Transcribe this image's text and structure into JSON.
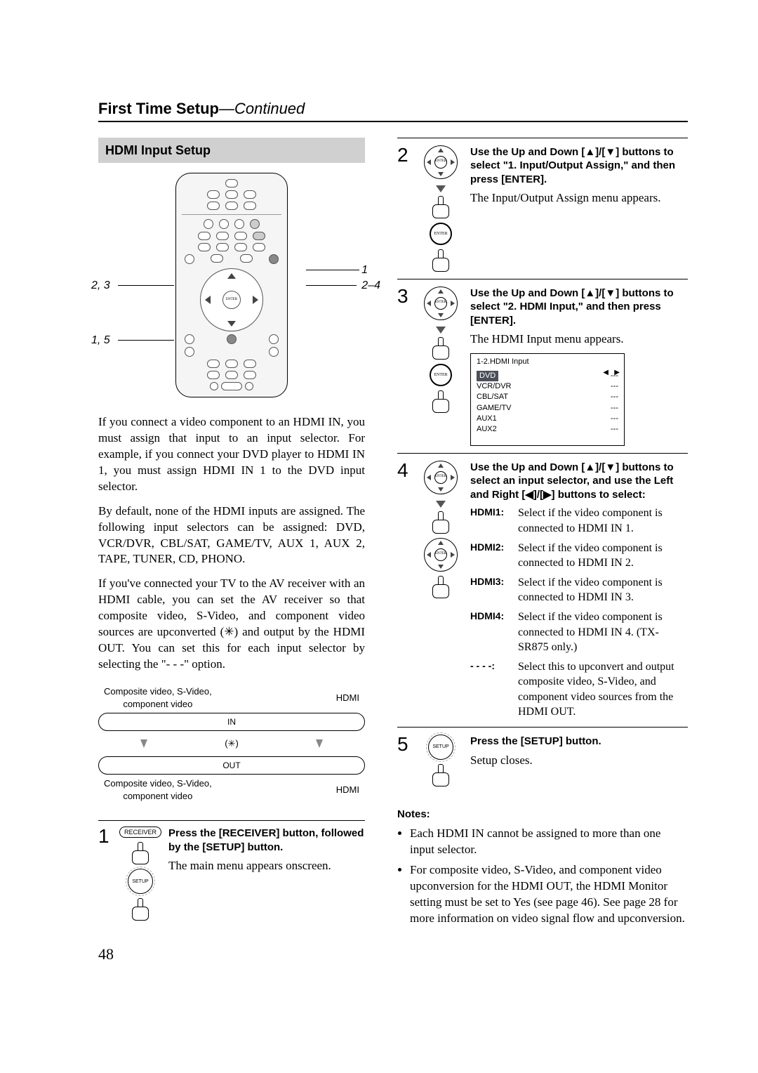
{
  "title_main": "First Time Setup",
  "title_cont": "—Continued",
  "section_header": "HDMI Input Setup",
  "remote_annotations": {
    "r1": "1",
    "r24": "2–4",
    "l23": "2, 3",
    "l15": "1, 5"
  },
  "left_paras": [
    "If you connect a video component to an HDMI IN, you must assign that input to an input selector. For example, if you connect your DVD player to HDMI IN 1, you must assign HDMI IN 1 to the DVD input selector.",
    "By default, none of the HDMI inputs are assigned. The following input selectors can be assigned: DVD, VCR/DVR, CBL/SAT, GAME/TV, AUX 1, AUX 2, TAPE, TUNER, CD, PHONO.",
    "If you've connected your TV to the AV receiver with an HDMI cable, you can set the AV receiver so that composite video, S-Video, and component video sources are upconverted (✳) and output by the HDMI OUT. You can set this for each input selector by selecting the \"- - -\" option."
  ],
  "flow": {
    "top_left": "Composite video, S-Video,\ncomponent video",
    "top_right": "HDMI",
    "in": "IN",
    "mid": "(✳)",
    "out": "OUT",
    "bottom_left": "Composite video, S-Video,\ncomponent video",
    "bottom_right": "HDMI"
  },
  "step1": {
    "num": "1",
    "btn1": "RECEIVER",
    "btn2": "SETUP",
    "bold": "Press the [RECEIVER] button, followed by the [SETUP] button.",
    "body": "The main menu appears onscreen."
  },
  "step2": {
    "num": "2",
    "bold": "Use the Up and Down [▲]/[▼] buttons to select \"1. Input/Output Assign,\" and then press [ENTER].",
    "body": "The Input/Output Assign menu appears.",
    "enter": "ENTER"
  },
  "step3": {
    "num": "3",
    "bold": "Use the Up and Down [▲]/[▼] buttons to select \"2. HDMI Input,\" and then press [ENTER].",
    "body": "The HDMI Input menu appears.",
    "enter": "ENTER",
    "osd_title": "1-2.HDMI Input",
    "osd_rows": [
      [
        "DVD",
        "---"
      ],
      [
        "VCR/DVR",
        "---"
      ],
      [
        "CBL/SAT",
        "---"
      ],
      [
        "GAME/TV",
        "---"
      ],
      [
        "AUX1",
        "---"
      ],
      [
        "AUX2",
        "---"
      ]
    ]
  },
  "step4": {
    "num": "4",
    "bold": "Use the Up and Down [▲]/[▼] buttons to select an input selector, and use the Left and Right [◀]/[▶] buttons to select:",
    "enter": "ENTER",
    "options": [
      [
        "HDMI1:",
        "Select if the video component is connected to HDMI IN 1."
      ],
      [
        "HDMI2:",
        "Select if the video component is connected to HDMI IN 2."
      ],
      [
        "HDMI3:",
        "Select if the video component is connected to HDMI IN 3."
      ],
      [
        "HDMI4:",
        "Select if the video component is connected to HDMI IN 4. (TX-SR875 only.)"
      ],
      [
        "- - - -:",
        "Select this to upconvert and output composite video, S-Video, and component video sources from the HDMI OUT."
      ]
    ]
  },
  "step5": {
    "num": "5",
    "btn": "SETUP",
    "bold": "Press the [SETUP] button.",
    "body": "Setup closes."
  },
  "notes_title": "Notes:",
  "notes": [
    "Each HDMI IN cannot be assigned to more than one input selector.",
    "For composite video, S-Video, and component video upconversion for the HDMI OUT, the HDMI Monitor setting must be set to Yes (see page 46). See page 28 for more information on video signal flow and upconversion."
  ],
  "page_num": "48"
}
